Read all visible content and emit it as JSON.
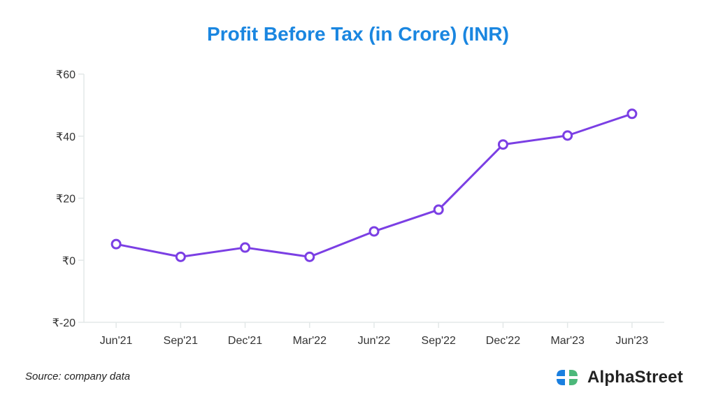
{
  "chart_data": {
    "type": "line",
    "title": "Profit Before Tax (in Crore) (INR)",
    "xlabel": "",
    "ylabel": "",
    "categories": [
      "Jun'21",
      "Sep'21",
      "Dec'21",
      "Mar'22",
      "Jun'22",
      "Sep'22",
      "Dec'22",
      "Mar'23",
      "Jun'23"
    ],
    "series": [
      {
        "name": "Profit Before Tax",
        "values": [
          5.2,
          1.1,
          4.1,
          1.1,
          9.3,
          16.3,
          37.3,
          40.2,
          47.2
        ]
      }
    ],
    "ylim": [
      -20,
      60
    ],
    "yticks": [
      -20,
      0,
      20,
      40,
      60
    ],
    "ytick_labels": [
      "₹-20",
      "₹0",
      "₹20",
      "₹40",
      "₹60"
    ],
    "grid": false,
    "line_color": "#7b3fe4"
  },
  "footer": {
    "source": "Source: company data",
    "brand": "AlphaStreet"
  }
}
